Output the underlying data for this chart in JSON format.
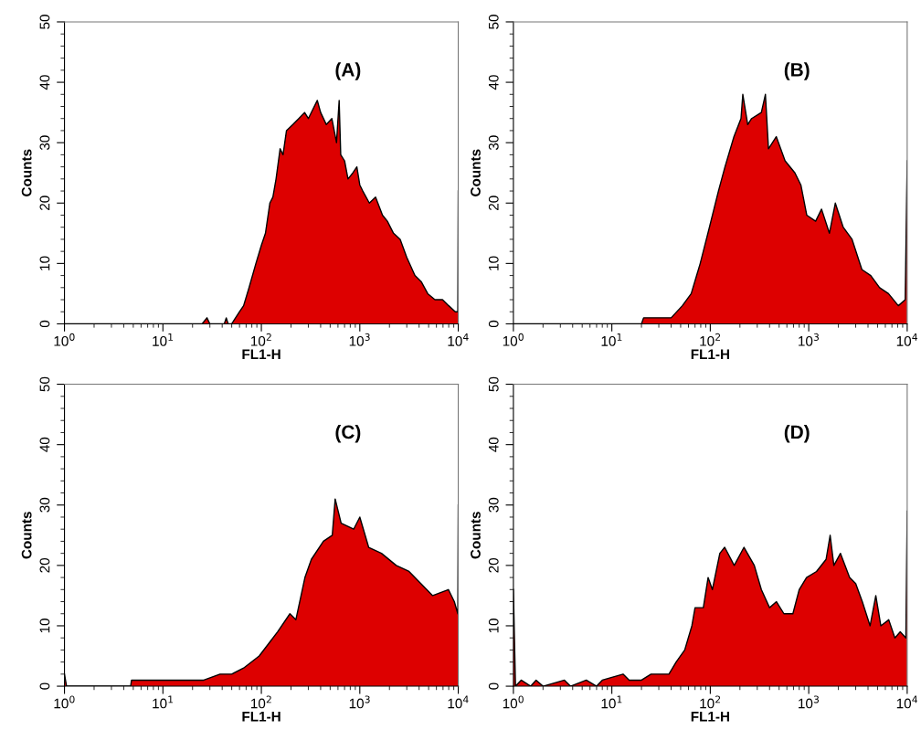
{
  "chart_data": [
    {
      "type": "area",
      "annotations": [
        "(A)"
      ],
      "xlabel": "FL1-H",
      "ylabel": "Counts",
      "log": "x",
      "xlim": [
        1,
        10000
      ],
      "xticks": [
        {
          "value": 1,
          "label": "10$^{0}$"
        },
        {
          "value": 10,
          "label": "10$^{1}$"
        },
        {
          "value": 100,
          "label": "10$^{2}$"
        },
        {
          "value": 1000,
          "label": "10$^{3}$"
        },
        {
          "value": 10000,
          "label": "10$^{4}$"
        }
      ],
      "ylim": [
        0,
        50
      ],
      "yticks": [
        0,
        10,
        20,
        30,
        40,
        50
      ],
      "series": [
        {
          "color": "#dd0000",
          "x": [
            1,
            25,
            28,
            30,
            42,
            44,
            46,
            50,
            60,
            66,
            75,
            88,
            100,
            110,
            122,
            131,
            141,
            155,
            166,
            180,
            209,
            240,
            275,
            300,
            370,
            400,
            457,
            520,
            580,
            617,
            640,
            700,
            759,
            850,
            933,
            1000,
            1072,
            1250,
            1445,
            1700,
            1905,
            2200,
            2570,
            3000,
            3631,
            4200,
            4898,
            5800,
            6918,
            8000,
            9333,
            9900,
            10000
          ],
          "values": [
            0,
            0,
            1,
            0,
            0,
            1,
            0,
            0,
            2,
            3,
            6,
            10,
            13,
            15,
            20,
            21,
            24,
            29,
            28,
            32,
            33,
            34,
            35,
            34,
            37,
            35,
            33,
            34,
            30,
            37,
            28,
            27,
            24,
            25,
            26,
            23,
            22,
            20,
            21,
            18,
            17,
            15,
            14,
            11,
            8,
            7,
            5,
            4,
            4,
            3,
            2,
            2,
            22
          ]
        }
      ]
    },
    {
      "type": "area",
      "annotations": [
        "(B)"
      ],
      "xlabel": "FL1-H",
      "ylabel": "Counts",
      "log": "x",
      "xlim": [
        1,
        10000
      ],
      "xticks": [
        {
          "value": 1,
          "label": "10$^{0}$"
        },
        {
          "value": 10,
          "label": "10$^{1}$"
        },
        {
          "value": 100,
          "label": "10$^{2}$"
        },
        {
          "value": 1000,
          "label": "10$^{3}$"
        },
        {
          "value": 10000,
          "label": "10$^{4}$"
        }
      ],
      "ylim": [
        0,
        50
      ],
      "yticks": [
        0,
        10,
        20,
        30,
        40,
        50
      ],
      "series": [
        {
          "color": "#dd0000",
          "x": [
            1,
            20,
            21,
            40,
            52,
            64,
            79,
            98,
            121,
            141,
            174,
            205,
            214,
            240,
            263,
            330,
            363,
            390,
            468,
            575,
            724,
            832,
            955,
            1175,
            1349,
            1622,
            1862,
            2239,
            2754,
            3467,
            4266,
            5248,
            6457,
            8128,
            9550,
            10000
          ],
          "values": [
            0,
            0,
            1,
            1,
            3,
            5,
            10,
            16,
            22,
            26,
            31,
            34,
            38,
            33,
            34,
            35,
            38,
            29,
            31,
            27,
            25,
            23,
            18,
            17,
            19,
            15,
            20,
            16,
            14,
            9,
            8,
            6,
            5,
            3,
            4,
            27
          ]
        }
      ]
    },
    {
      "type": "area",
      "annotations": [
        "(C)"
      ],
      "xlabel": "FL1-H",
      "ylabel": "Counts",
      "log": "x",
      "xlim": [
        1,
        10000
      ],
      "xticks": [
        {
          "value": 1,
          "label": "10$^{0}$"
        },
        {
          "value": 10,
          "label": "10$^{1}$"
        },
        {
          "value": 100,
          "label": "10$^{2}$"
        },
        {
          "value": 1000,
          "label": "10$^{3}$"
        },
        {
          "value": 10000,
          "label": "10$^{4}$"
        }
      ],
      "ylim": [
        0,
        50
      ],
      "yticks": [
        0,
        10,
        20,
        30,
        40,
        50
      ],
      "series": [
        {
          "color": "#dd0000",
          "x": [
            1,
            1.05,
            4.7,
            4.8,
            26,
            38,
            50,
            66,
            95,
            118,
            146,
            195,
            224,
            277,
            322,
            427,
            525,
            562,
            646,
            866,
            1000,
            1230,
            1660,
            2344,
            3162,
            4169,
            5495,
            7943,
            9120,
            9900,
            10000
          ],
          "values": [
            2,
            0,
            0,
            1,
            1,
            2,
            2,
            3,
            5,
            7,
            9,
            12,
            11,
            18,
            21,
            24,
            25,
            31,
            27,
            26,
            28,
            23,
            22,
            20,
            19,
            17,
            15,
            16,
            14,
            12,
            30
          ]
        }
      ]
    },
    {
      "type": "area",
      "annotations": [
        "(D)"
      ],
      "xlabel": "FL1-H",
      "ylabel": "Counts",
      "log": "x",
      "xlim": [
        1,
        10000
      ],
      "xticks": [
        {
          "value": 1,
          "label": "10$^{0}$"
        },
        {
          "value": 10,
          "label": "10$^{1}$"
        },
        {
          "value": 100,
          "label": "10$^{2}$"
        },
        {
          "value": 1000,
          "label": "10$^{3}$"
        },
        {
          "value": 10000,
          "label": "10$^{4}$"
        }
      ],
      "ylim": [
        0,
        50
      ],
      "yticks": [
        0,
        10,
        20,
        30,
        40,
        50
      ],
      "series": [
        {
          "color": "#dd0000",
          "x": [
            1,
            1.05,
            1.2,
            1.5,
            1.7,
            2,
            3.3,
            3.8,
            5.5,
            7,
            8,
            13,
            15,
            20,
            25,
            38,
            45,
            55,
            65,
            70,
            85,
            95,
            105,
            125,
            140,
            175,
            220,
            280,
            330,
            400,
            470,
            560,
            690,
            800,
            950,
            1200,
            1500,
            1650,
            1800,
            2100,
            2600,
            3000,
            3500,
            4200,
            4800,
            5400,
            6500,
            7500,
            8500,
            9700,
            10000
          ],
          "values": [
            16,
            0,
            1,
            0,
            1,
            0,
            1,
            0,
            1,
            0,
            1,
            2,
            1,
            1,
            2,
            2,
            4,
            6,
            10,
            13,
            13,
            18,
            16,
            22,
            23,
            20,
            23,
            20,
            16,
            13,
            14,
            12,
            12,
            16,
            18,
            19,
            21,
            25,
            20,
            22,
            18,
            17,
            14,
            10,
            15,
            10,
            11,
            8,
            9,
            8,
            29
          ]
        }
      ]
    }
  ]
}
